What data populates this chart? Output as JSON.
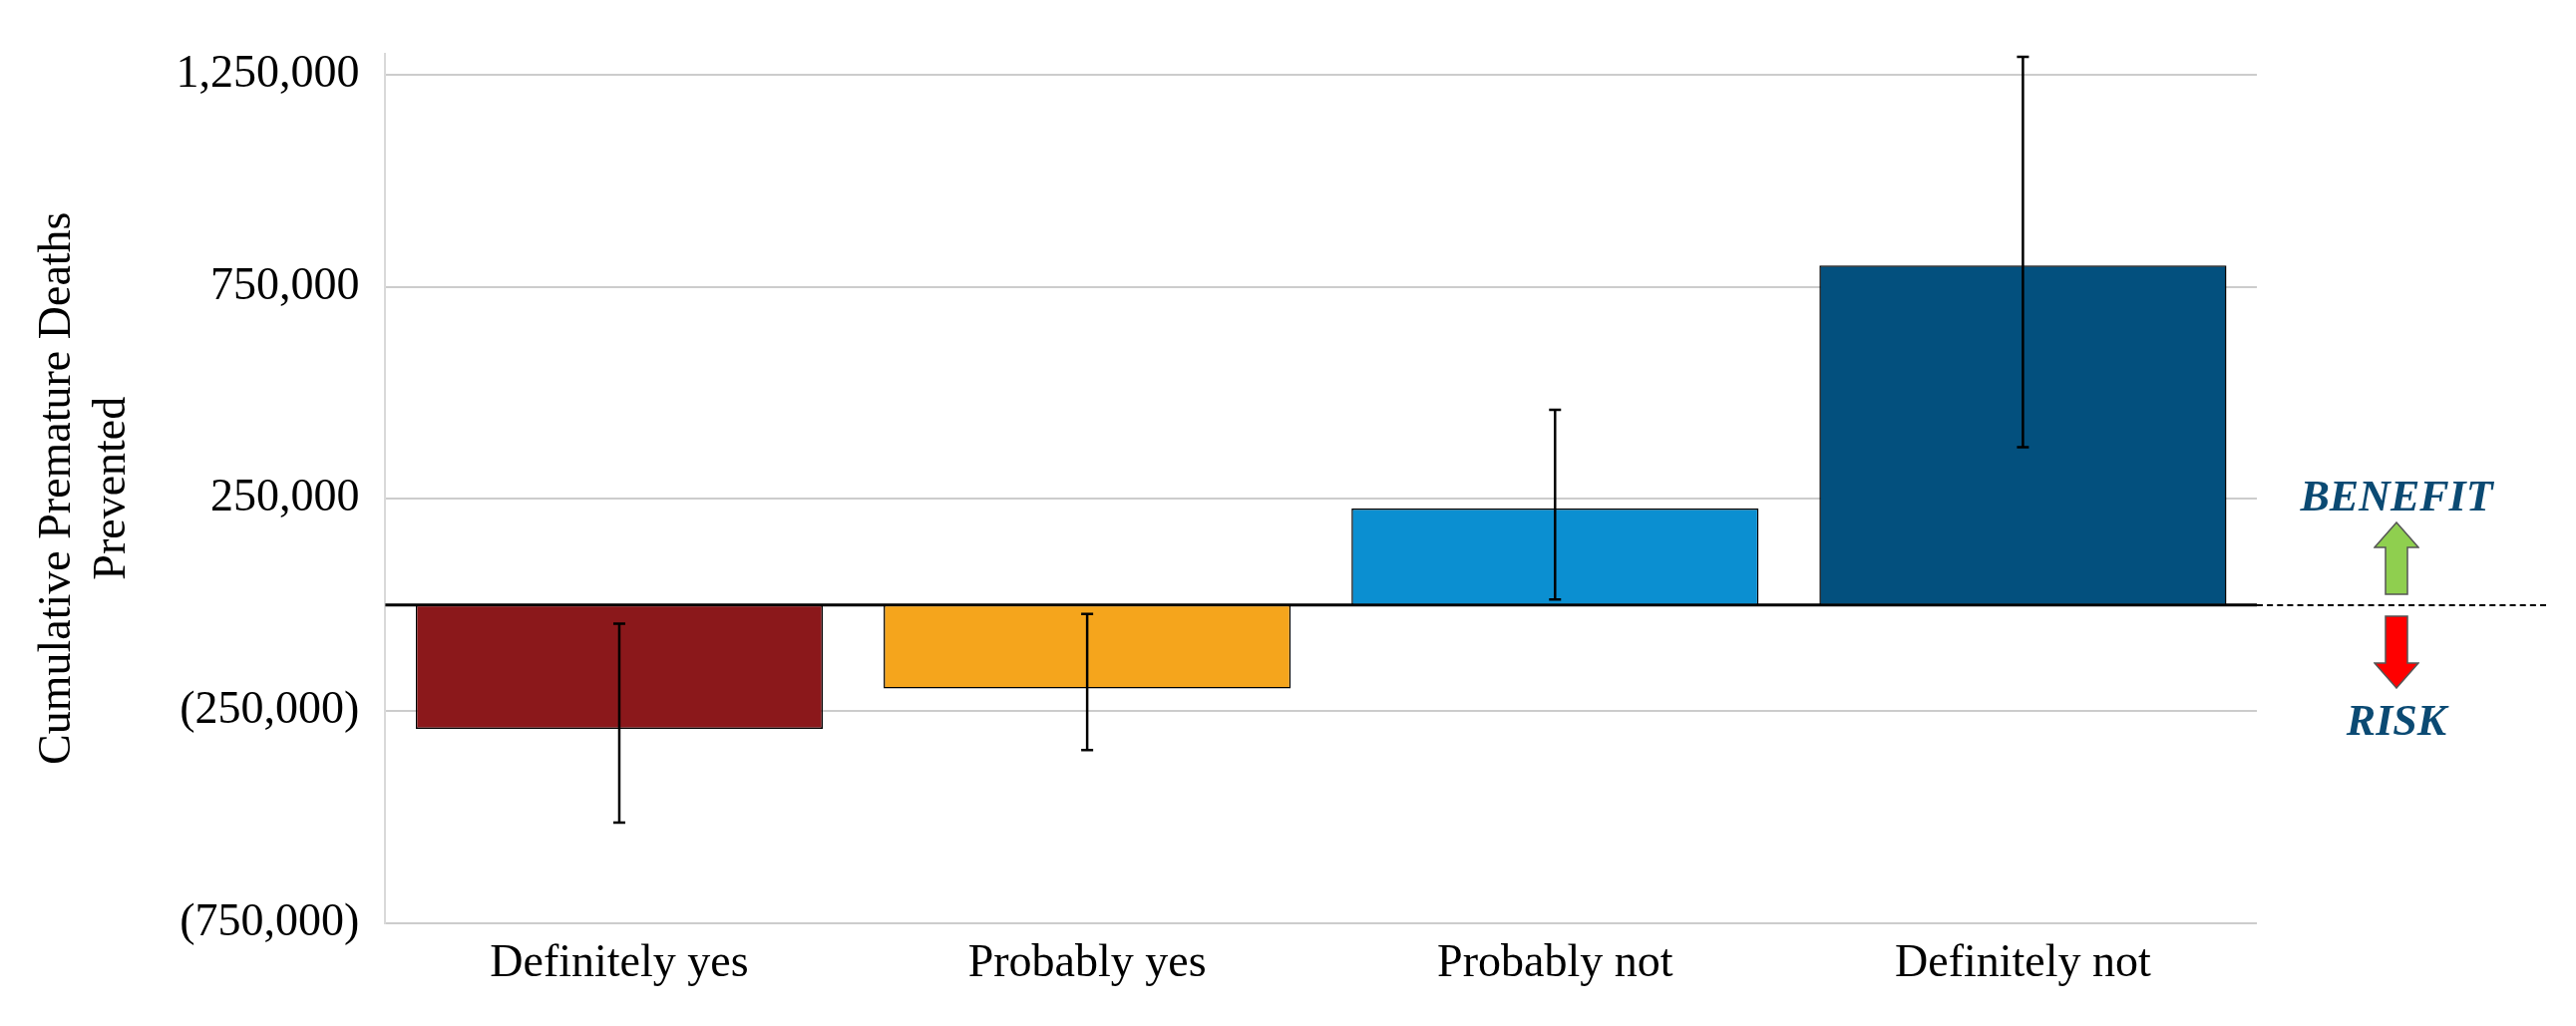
{
  "chart_data": {
    "type": "bar",
    "ylabel": "Cumulative Premature Deaths Prevented",
    "categories": [
      "Definitely yes",
      "Probably yes",
      "Probably not",
      "Definitely not"
    ],
    "values": [
      -292000,
      -197000,
      227000,
      800000
    ],
    "colors": [
      "#8b181b",
      "#f5a51c",
      "#0b8fd1",
      "#03507e"
    ],
    "errors": [
      [
        -513000,
        -44000
      ],
      [
        -342000,
        -21000
      ],
      [
        13000,
        460000
      ],
      [
        372000,
        1292000
      ]
    ],
    "ylim": [
      -750000,
      1300000
    ],
    "yticks": [
      {
        "value": 1250000,
        "label": "1,250,000"
      },
      {
        "value": 750000,
        "label": "750,000"
      },
      {
        "value": 250000,
        "label": "250,000"
      },
      {
        "value": -250000,
        "label": "(250,000)"
      },
      {
        "value": -750000,
        "label": "(750,000)"
      }
    ],
    "grid": "y",
    "legend": false,
    "annotations": [
      "BENEFIT",
      "RISK"
    ]
  }
}
